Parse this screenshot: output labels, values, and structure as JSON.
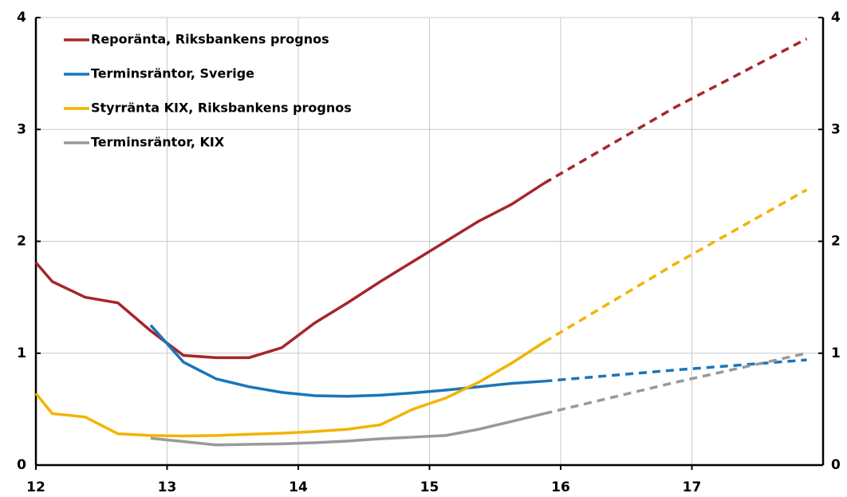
{
  "chart_data": {
    "type": "line",
    "x": [
      12,
      12.125,
      12.375,
      12.625,
      12.875,
      13.125,
      13.375,
      13.625,
      13.875,
      14.125,
      14.375,
      14.625,
      14.875,
      15.125,
      15.375,
      15.625,
      15.875,
      16.875,
      17.875
    ],
    "forecast_start": 15.875,
    "series": [
      {
        "name": "Reporänta, Riksbankens prognos",
        "color": "#a6262c",
        "values": [
          1.81,
          1.64,
          1.5,
          1.45,
          1.2,
          0.98,
          0.96,
          0.96,
          1.05,
          1.27,
          1.45,
          1.64,
          1.82,
          2.0,
          2.18,
          2.33,
          2.52,
          3.2,
          3.81
        ]
      },
      {
        "name": "Terminsräntor, Sverige",
        "color": "#1a75bb",
        "values": [
          null,
          null,
          null,
          null,
          1.25,
          0.92,
          0.77,
          0.7,
          0.65,
          0.62,
          0.615,
          0.625,
          0.645,
          0.67,
          0.7,
          0.73,
          0.75,
          0.85,
          0.94
        ]
      },
      {
        "name": "Styrränta KIX, Riksbankens prognos",
        "color": "#f2b400",
        "values": [
          0.64,
          0.46,
          0.43,
          0.28,
          0.265,
          0.26,
          0.265,
          0.275,
          0.285,
          0.3,
          0.32,
          0.36,
          0.5,
          0.6,
          0.74,
          0.91,
          1.1,
          1.8,
          2.46
        ]
      },
      {
        "name": "Terminsräntor, KIX",
        "color": "#999999",
        "values": [
          null,
          null,
          null,
          null,
          0.24,
          0.21,
          0.18,
          0.185,
          0.19,
          0.2,
          0.215,
          0.235,
          0.25,
          0.265,
          0.32,
          0.39,
          0.46,
          0.74,
          1.0
        ]
      }
    ],
    "xlim": [
      12,
      18
    ],
    "xticks": [
      12,
      13,
      14,
      15,
      16,
      17
    ],
    "ylim": [
      0,
      4
    ],
    "yticks": [
      0,
      1,
      2,
      3,
      4
    ],
    "y2lim": [
      0,
      4
    ],
    "y2ticks": [
      0,
      1,
      2,
      3,
      4
    ],
    "grid": true
  }
}
